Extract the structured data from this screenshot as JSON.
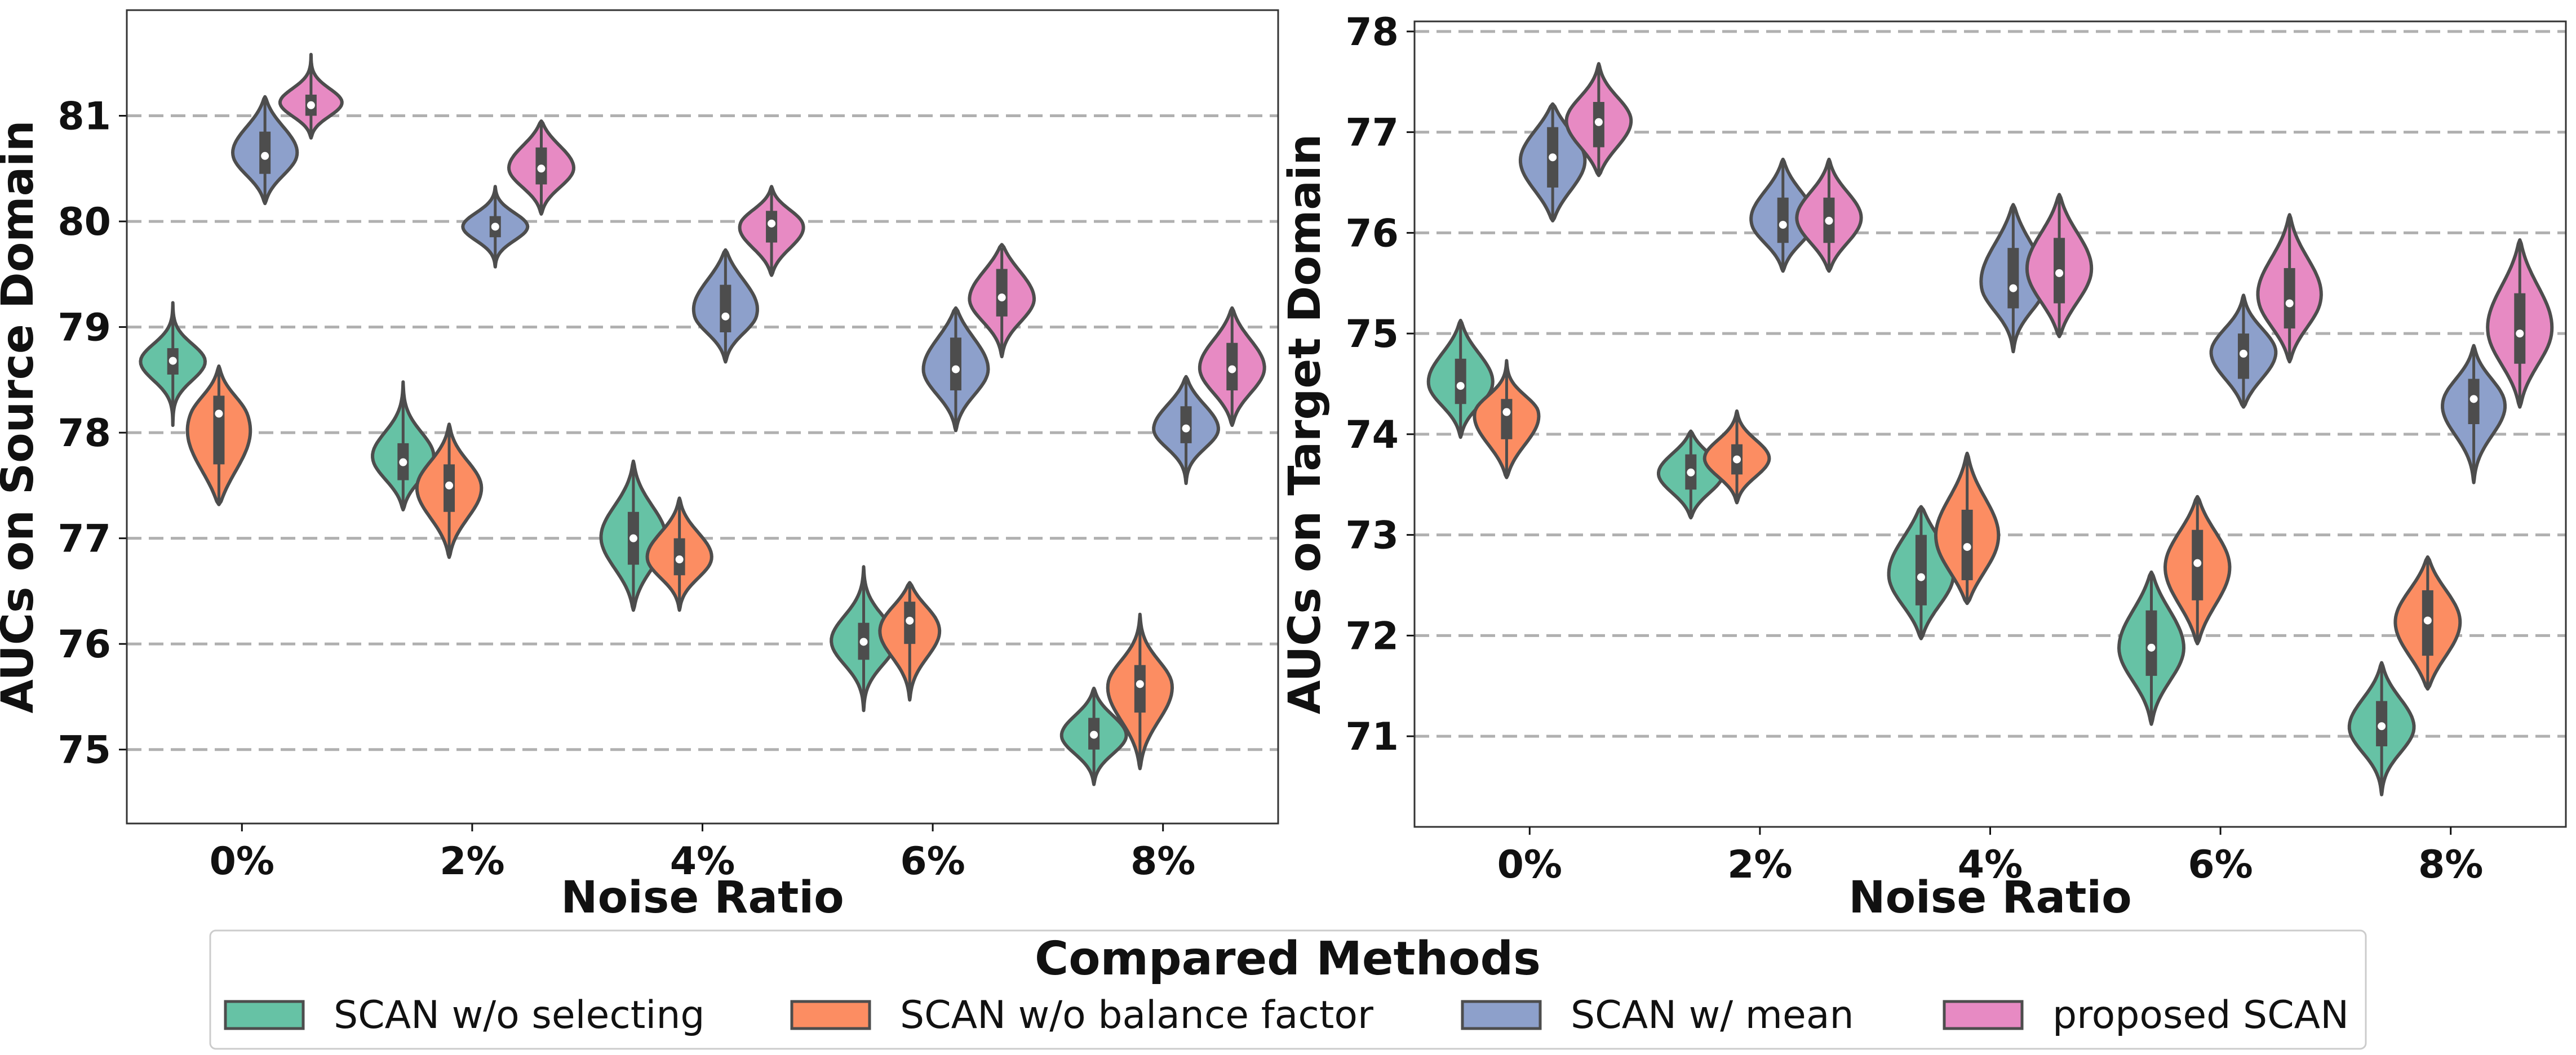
{
  "legend": {
    "title": "Compared Methods",
    "items": [
      {
        "label": "SCAN w/o selecting",
        "color": "#66c2a5"
      },
      {
        "label": "SCAN w/o balance factor",
        "color": "#fc8d62"
      },
      {
        "label": "SCAN w/ mean",
        "color": "#8da0cb"
      },
      {
        "label": "proposed SCAN",
        "color": "#e78ac3"
      }
    ]
  },
  "chart_data": [
    {
      "type": "violin",
      "xlabel": "Noise Ratio",
      "ylabel": "AUCs on Source Domain",
      "categories": [
        "0%",
        "2%",
        "4%",
        "6%",
        "8%"
      ],
      "ylim": [
        74.3,
        82.0
      ],
      "yticks": [
        75,
        76,
        77,
        78,
        79,
        80,
        81
      ],
      "grid": "horizontal dashed",
      "series": [
        {
          "name": "SCAN w/o selecting",
          "median": [
            78.68,
            77.72,
            77.0,
            76.02,
            75.14
          ],
          "q1": [
            78.55,
            77.55,
            76.75,
            75.85,
            75.0
          ],
          "q3": [
            78.8,
            77.9,
            77.25,
            76.2,
            75.3
          ],
          "min": [
            78.1,
            77.3,
            76.35,
            75.4,
            74.7
          ],
          "max": [
            79.2,
            78.45,
            77.7,
            76.7,
            75.55
          ]
        },
        {
          "name": "SCAN w/o balance factor",
          "median": [
            78.18,
            77.5,
            76.8,
            76.22,
            75.62
          ],
          "q1": [
            77.7,
            77.25,
            76.65,
            76.0,
            75.35
          ],
          "q3": [
            78.35,
            77.7,
            77.0,
            76.4,
            75.8
          ],
          "min": [
            77.35,
            76.85,
            76.35,
            75.5,
            74.85
          ],
          "max": [
            78.6,
            78.05,
            77.35,
            76.55,
            76.25
          ]
        },
        {
          "name": "SCAN w/ mean",
          "median": [
            80.62,
            79.95,
            79.1,
            78.6,
            78.04
          ],
          "q1": [
            80.45,
            79.85,
            78.95,
            78.4,
            77.9
          ],
          "q3": [
            80.85,
            80.05,
            79.4,
            78.9,
            78.25
          ],
          "min": [
            80.2,
            79.6,
            78.7,
            78.05,
            77.55
          ],
          "max": [
            81.15,
            80.3,
            79.7,
            79.15,
            78.5
          ]
        },
        {
          "name": "proposed SCAN",
          "median": [
            81.1,
            80.5,
            79.98,
            79.28,
            78.6
          ],
          "q1": [
            81.0,
            80.35,
            79.8,
            79.1,
            78.4
          ],
          "q3": [
            81.2,
            80.7,
            80.1,
            79.55,
            78.85
          ],
          "min": [
            80.82,
            80.1,
            79.52,
            78.75,
            78.1
          ],
          "max": [
            81.55,
            80.92,
            80.3,
            79.75,
            79.15
          ]
        }
      ]
    },
    {
      "type": "violin",
      "xlabel": "Noise Ratio",
      "ylabel": "AUCs on Target Domain",
      "categories": [
        "0%",
        "2%",
        "4%",
        "6%",
        "8%"
      ],
      "ylim": [
        70.1,
        78.1
      ],
      "yticks": [
        71,
        72,
        73,
        74,
        75,
        76,
        77,
        78
      ],
      "grid": "horizontal dashed",
      "series": [
        {
          "name": "SCAN w/o selecting",
          "median": [
            74.48,
            73.62,
            72.58,
            71.88,
            71.1
          ],
          "q1": [
            74.3,
            73.45,
            72.3,
            71.6,
            70.9
          ],
          "q3": [
            74.75,
            73.8,
            73.0,
            72.25,
            71.35
          ],
          "min": [
            74.0,
            73.2,
            72.0,
            71.15,
            70.45
          ],
          "max": [
            75.1,
            74.0,
            73.25,
            72.6,
            71.7
          ]
        },
        {
          "name": "SCAN w/o balance factor",
          "median": [
            74.22,
            73.75,
            72.88,
            72.72,
            72.15
          ],
          "q1": [
            73.95,
            73.6,
            72.55,
            72.35,
            71.8
          ],
          "q3": [
            74.35,
            73.9,
            73.25,
            73.05,
            72.45
          ],
          "min": [
            73.6,
            73.35,
            72.35,
            71.95,
            71.5
          ],
          "max": [
            74.7,
            74.2,
            73.78,
            73.35,
            72.75
          ]
        },
        {
          "name": "SCAN w/ mean",
          "median": [
            76.75,
            76.08,
            75.45,
            74.8,
            74.35
          ],
          "q1": [
            76.45,
            75.9,
            75.25,
            74.55,
            74.1
          ],
          "q3": [
            77.05,
            76.35,
            75.85,
            75.0,
            74.55
          ],
          "min": [
            76.15,
            75.65,
            74.85,
            74.3,
            73.55
          ],
          "max": [
            77.25,
            76.7,
            76.25,
            75.35,
            74.85
          ]
        },
        {
          "name": "proposed SCAN",
          "median": [
            77.1,
            76.12,
            75.6,
            75.3,
            75.0
          ],
          "q1": [
            76.85,
            75.9,
            75.3,
            75.05,
            74.7
          ],
          "q3": [
            77.3,
            76.35,
            75.95,
            75.65,
            75.4
          ],
          "min": [
            76.6,
            75.65,
            75.0,
            74.75,
            74.3
          ],
          "max": [
            77.65,
            76.7,
            76.35,
            76.15,
            75.9
          ]
        }
      ]
    }
  ]
}
